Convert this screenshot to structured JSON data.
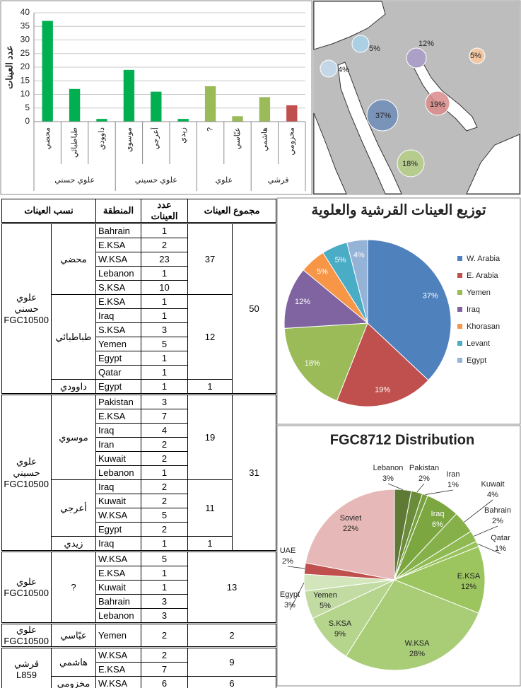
{
  "chart_data": [
    {
      "type": "bar",
      "ylabel": "عدد العينات",
      "ylim": [
        0,
        40
      ],
      "yticks": [
        0,
        5,
        10,
        15,
        20,
        25,
        30,
        35,
        40
      ],
      "grid": true,
      "groups": [
        {
          "name": "علوي حسني",
          "categories": [
            "محضي",
            "طباطبائي",
            "داوودي"
          ],
          "values": [
            37,
            12,
            1
          ],
          "colors": [
            "#00b050",
            "#00b050",
            "#00b050"
          ]
        },
        {
          "name": "علوي حسيني",
          "categories": [
            "موسوي",
            "أعرجي",
            "زيدي"
          ],
          "values": [
            19,
            11,
            1
          ],
          "colors": [
            "#00b050",
            "#00b050",
            "#00b050"
          ]
        },
        {
          "name": "علوي",
          "categories": [
            "?",
            "عبّاسي"
          ],
          "values": [
            13,
            2
          ],
          "colors": [
            "#9bbb59",
            "#9bbb59"
          ]
        },
        {
          "name": "قرشي",
          "categories": [
            "هاشمي",
            "مخزومي"
          ],
          "values": [
            9,
            6
          ],
          "colors": [
            "#9bbb59",
            "#c0504d"
          ]
        }
      ]
    },
    {
      "type": "pie",
      "title": "توزيع العينات القرشية والعلوية",
      "categories": [
        "W. Arabia",
        "E. Arabia",
        "Yemen",
        "Iraq",
        "Khorasan",
        "Levant",
        "Egypt"
      ],
      "values": [
        37,
        19,
        18,
        12,
        5,
        5,
        4
      ],
      "value_labels": [
        "37%",
        "19%",
        "18%",
        "12%",
        "5%",
        "5%",
        "4%"
      ],
      "colors": [
        "#4f81bd",
        "#c0504d",
        "#9bbb59",
        "#8064a2",
        "#f79646",
        "#4bacc6",
        "#95b3d7"
      ],
      "legend": "right"
    },
    {
      "type": "pie",
      "title": "FGC8712 Distribution",
      "categories": [
        "Lebanon",
        "Pakistan",
        "Iran",
        "Iraq",
        "Kuwait",
        "Bahrain",
        "Qatar",
        "E.KSA",
        "W.KSA",
        "S.KSA",
        "Yemen",
        "Egypt",
        "UAE",
        "Soviet"
      ],
      "values": [
        3,
        2,
        1,
        6,
        4,
        2,
        1,
        12,
        28,
        9,
        5,
        3,
        2,
        22
      ],
      "value_labels": [
        "3%",
        "2%",
        "1%",
        "6%",
        "4%",
        "2%",
        "1%",
        "12%",
        "28%",
        "9%",
        "5%",
        "3%",
        "2%",
        "22%"
      ],
      "colors": [
        "#5f7a35",
        "#6b8c3a",
        "#77a13f",
        "#7ca640",
        "#86b14a",
        "#8fba52",
        "#98c25b",
        "#9cc55f",
        "#a9cd77",
        "#b5d48c",
        "#c2dba2",
        "#d2e5bb",
        "#c0504d",
        "#e6b9b8"
      ]
    }
  ],
  "map": {
    "bubbles": [
      {
        "label": "5%",
        "color": "#a9d3ea"
      },
      {
        "label": "4%",
        "color": "#c5dcf0"
      },
      {
        "label": "12%",
        "color": "#a99bc9"
      },
      {
        "label": "5%",
        "color": "#fbc99f"
      },
      {
        "label": "19%",
        "color": "#d98b89"
      },
      {
        "label": "37%",
        "color": "#6e8db8"
      },
      {
        "label": "18%",
        "color": "#b4cf86"
      }
    ]
  },
  "table": {
    "headers": [
      "نسب العينات",
      "المنطقة",
      "عدد العينات",
      "مجموع العينات"
    ],
    "groups": [
      {
        "name": "علوي\nحسني\nFGC10500",
        "total": 50,
        "subgroups": [
          {
            "name": "محضي",
            "total": 37,
            "rows": [
              [
                "Bahrain",
                1
              ],
              [
                "E.KSA",
                2
              ],
              [
                "W.KSA",
                23
              ],
              [
                "Lebanon",
                1
              ],
              [
                "S.KSA",
                10
              ]
            ]
          },
          {
            "name": "طباطبائي",
            "total": 12,
            "rows": [
              [
                "E.KSA",
                1
              ],
              [
                "Iraq",
                1
              ],
              [
                "S.KSA",
                3
              ],
              [
                "Yemen",
                5
              ],
              [
                "Egypt",
                1
              ],
              [
                "Qatar",
                1
              ]
            ]
          },
          {
            "name": "داوودي",
            "total": 1,
            "rows": [
              [
                "Egypt",
                1
              ]
            ]
          }
        ]
      },
      {
        "name": "علوي\nحسيني\nFGC10500",
        "total": 31,
        "subgroups": [
          {
            "name": "موسوي",
            "total": 19,
            "rows": [
              [
                "Pakistan",
                3
              ],
              [
                "E.KSA",
                7
              ],
              [
                "Iraq",
                4
              ],
              [
                "Iran",
                2
              ],
              [
                "Kuwait",
                2
              ],
              [
                "Lebanon",
                1
              ]
            ]
          },
          {
            "name": "أعرجي",
            "total": 11,
            "rows": [
              [
                "Iraq",
                2
              ],
              [
                "Kuwait",
                2
              ],
              [
                "W.KSA",
                5
              ],
              [
                "Egypt",
                2
              ]
            ]
          },
          {
            "name": "زيدي",
            "total": 1,
            "rows": [
              [
                "Iraq",
                1
              ]
            ]
          }
        ]
      },
      {
        "name": "علوي\nFGC10500",
        "subgroups": [
          {
            "name": "?",
            "total": 13,
            "rows": [
              [
                "W.KSA",
                5
              ],
              [
                "E.KSA",
                1
              ],
              [
                "Kuwait",
                1
              ],
              [
                "Bahrain",
                3
              ],
              [
                "Lebanon",
                3
              ]
            ]
          }
        ]
      },
      {
        "name": "علوي\nFGC10500",
        "subgroups": [
          {
            "name": "عبّاسي",
            "total": 2,
            "rows": [
              [
                "Yemen",
                2
              ]
            ]
          }
        ]
      },
      {
        "name": "قرشي L859",
        "subgroups": [
          {
            "name": "هاشمي",
            "total": 9,
            "rows": [
              [
                "W.KSA",
                2
              ],
              [
                "E.KSA",
                7
              ]
            ]
          },
          {
            "name": "مخزومي",
            "total": 6,
            "rows": [
              [
                "W.KSA",
                6
              ]
            ]
          }
        ]
      }
    ]
  }
}
